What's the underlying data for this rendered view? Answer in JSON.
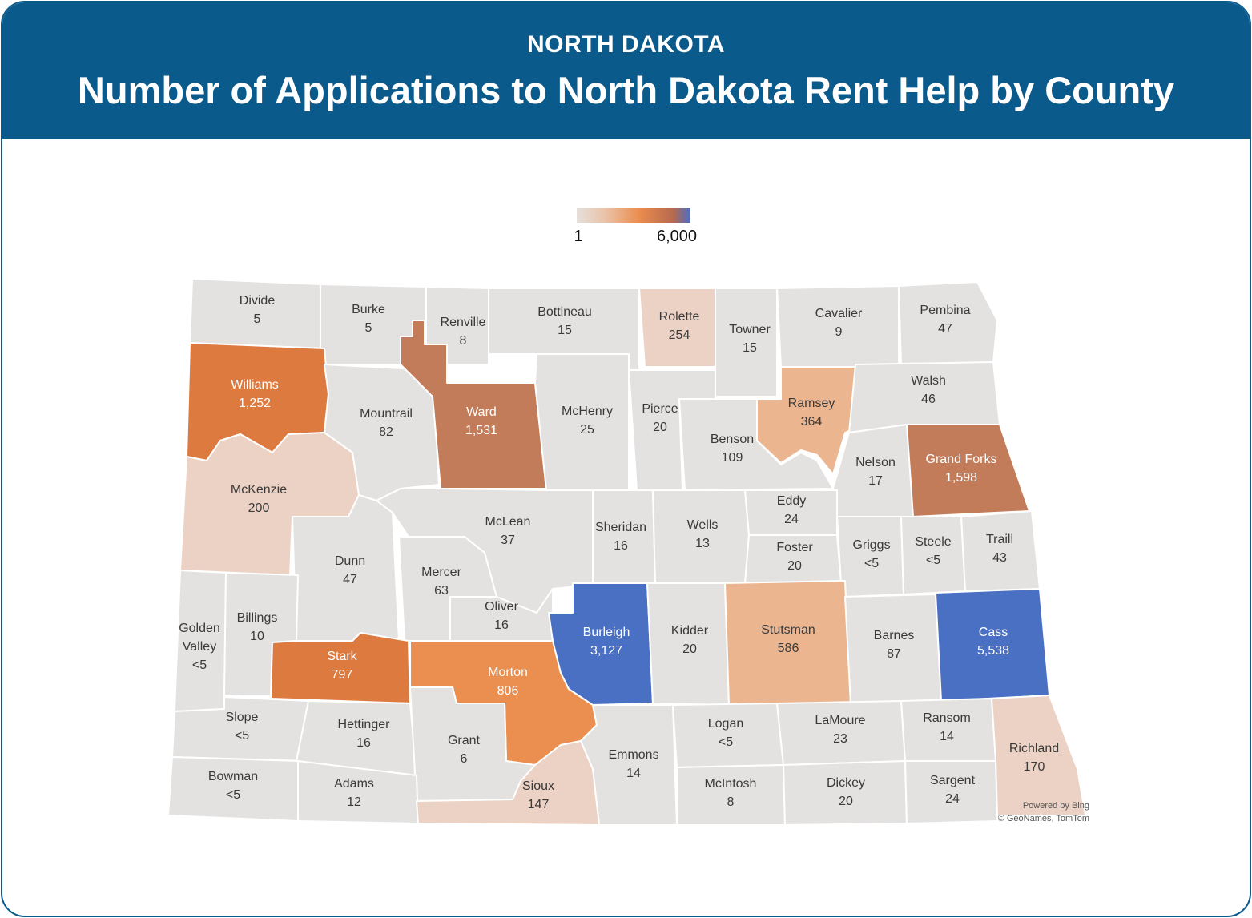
{
  "header": {
    "state": "NORTH DAKOTA",
    "title": "Number of Applications to North Dakota Rent Help by County"
  },
  "legend": {
    "min_label": "1",
    "max_label": "6,000"
  },
  "credits": {
    "powered": "Powered by Bing",
    "copyright": "© GeoNames, TomTom"
  },
  "colors": {
    "low": "#e4e2e1",
    "light_peach": "#ebd2c4",
    "peach": "#ebb590",
    "orange": "#eb8f50",
    "dark_orange": "#dd7a40",
    "brown": "#c27c5a",
    "blue": "#4a70c4"
  },
  "counties": [
    {
      "name": "Divide",
      "value": "5"
    },
    {
      "name": "Burke",
      "value": "5"
    },
    {
      "name": "Renville",
      "value": "8"
    },
    {
      "name": "Bottineau",
      "value": "15"
    },
    {
      "name": "Rolette",
      "value": "254"
    },
    {
      "name": "Towner",
      "value": "15"
    },
    {
      "name": "Cavalier",
      "value": "9"
    },
    {
      "name": "Pembina",
      "value": "47"
    },
    {
      "name": "Williams",
      "value": "1,252"
    },
    {
      "name": "Mountrail",
      "value": "82"
    },
    {
      "name": "Ward",
      "value": "1,531"
    },
    {
      "name": "McHenry",
      "value": "25"
    },
    {
      "name": "Pierce",
      "value": "20"
    },
    {
      "name": "Benson",
      "value": "109"
    },
    {
      "name": "Ramsey",
      "value": "364"
    },
    {
      "name": "Walsh",
      "value": "46"
    },
    {
      "name": "Nelson",
      "value": "17"
    },
    {
      "name": "Grand Forks",
      "value": "1,598"
    },
    {
      "name": "McKenzie",
      "value": "200"
    },
    {
      "name": "McLean",
      "value": "37"
    },
    {
      "name": "Sheridan",
      "value": "16"
    },
    {
      "name": "Wells",
      "value": "13"
    },
    {
      "name": "Eddy",
      "value": "24"
    },
    {
      "name": "Foster",
      "value": "20"
    },
    {
      "name": "Griggs",
      "value": "<5"
    },
    {
      "name": "Steele",
      "value": "<5"
    },
    {
      "name": "Traill",
      "value": "43"
    },
    {
      "name": "Dunn",
      "value": "47"
    },
    {
      "name": "Mercer",
      "value": "63"
    },
    {
      "name": "Oliver",
      "value": "16"
    },
    {
      "name": "Golden Valley",
      "value": "<5"
    },
    {
      "name": "Billings",
      "value": "10"
    },
    {
      "name": "Stark",
      "value": "797"
    },
    {
      "name": "Morton",
      "value": "806"
    },
    {
      "name": "Burleigh",
      "value": "3,127"
    },
    {
      "name": "Kidder",
      "value": "20"
    },
    {
      "name": "Stutsman",
      "value": "586"
    },
    {
      "name": "Barnes",
      "value": "87"
    },
    {
      "name": "Cass",
      "value": "5,538"
    },
    {
      "name": "Slope",
      "value": "<5"
    },
    {
      "name": "Hettinger",
      "value": "16"
    },
    {
      "name": "Grant",
      "value": "6"
    },
    {
      "name": "Emmons",
      "value": "14"
    },
    {
      "name": "Logan",
      "value": "<5"
    },
    {
      "name": "LaMoure",
      "value": "23"
    },
    {
      "name": "Ransom",
      "value": "14"
    },
    {
      "name": "Richland",
      "value": "170"
    },
    {
      "name": "Bowman",
      "value": "<5"
    },
    {
      "name": "Adams",
      "value": "12"
    },
    {
      "name": "Sioux",
      "value": "147"
    },
    {
      "name": "McIntosh",
      "value": "8"
    },
    {
      "name": "Dickey",
      "value": "20"
    },
    {
      "name": "Sargent",
      "value": "24"
    }
  ]
}
